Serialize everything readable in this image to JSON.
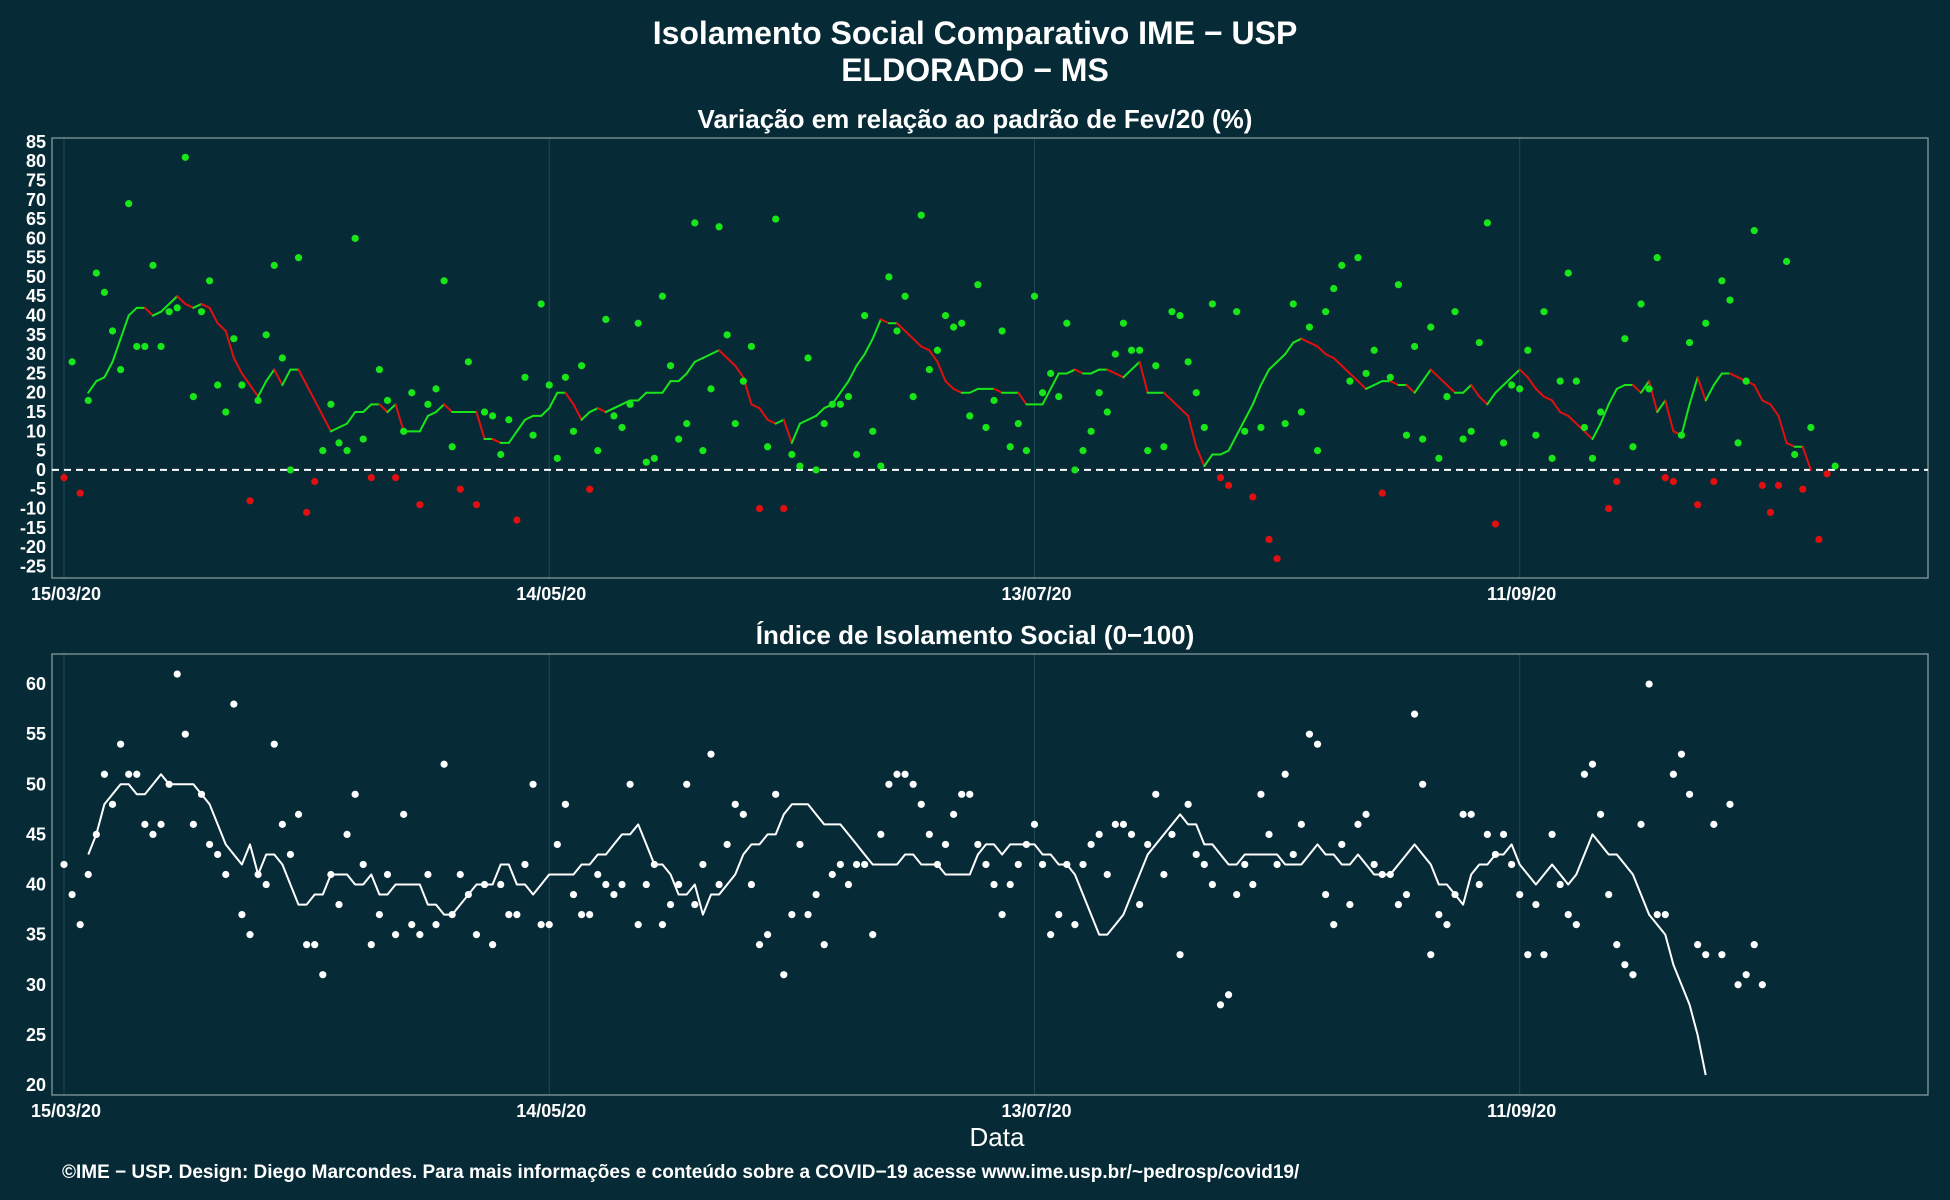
{
  "header": {
    "title": "Isolamento Social Comparativo IME − USP",
    "subtitle": "ELDORADO − MS"
  },
  "colors": {
    "background": "#062a36",
    "axis": "#8fa3a8",
    "grid": "#1e4a56",
    "positive": "#19e619",
    "negative": "#e01010",
    "index": "#ffffff"
  },
  "footer": {
    "xlabel": "Data",
    "credit": "©IME − USP. Design: Diego Marcondes. Para mais informações e conteúdo sobre a COVID−19 acesse www.ime.usp.br/~pedrosp/covid19/"
  },
  "chart_data": [
    {
      "type": "scatter",
      "title": "Variação em relação ao padrão de Fev/20 (%)",
      "xlim": [
        "15/03/20",
        "30/10/20"
      ],
      "ylim": [
        -28,
        86
      ],
      "yticks": [
        -25,
        -20,
        -15,
        -10,
        -5,
        0,
        5,
        10,
        15,
        20,
        25,
        30,
        35,
        40,
        45,
        50,
        55,
        60,
        65,
        70,
        75,
        80,
        85
      ],
      "xtick_labels": [
        "15/03/20",
        "14/05/20",
        "13/07/20",
        "11/09/20"
      ],
      "reference_line": 0,
      "positive_color": "#19e619",
      "negative_color": "#e01010",
      "points_start": "15/03/20",
      "points": [
        -2,
        28,
        -6,
        18,
        51,
        46,
        36,
        26,
        69,
        32,
        32,
        53,
        32,
        41,
        42,
        81,
        19,
        41,
        49,
        22,
        15,
        34,
        22,
        -8,
        18,
        35,
        53,
        29,
        0,
        55,
        -11,
        -3,
        5,
        17,
        7,
        5,
        60,
        8,
        -2,
        26,
        18,
        -2,
        10,
        20,
        -9,
        17,
        21,
        49,
        6,
        -5,
        28,
        -9,
        15,
        14,
        4,
        13,
        -13,
        24,
        9,
        43,
        22,
        3,
        24,
        10,
        27,
        -5,
        5,
        39,
        14,
        11,
        17,
        38,
        2,
        3,
        45,
        27,
        8,
        12,
        64,
        5,
        21,
        63,
        35,
        12,
        23,
        32,
        -10,
        6,
        65,
        -10,
        4,
        1,
        29,
        0,
        12,
        17,
        17,
        19,
        4,
        40,
        10,
        1,
        50,
        36,
        45,
        19,
        66,
        26,
        31,
        40,
        37,
        38,
        14,
        48,
        11,
        18,
        36,
        6,
        12,
        5,
        45,
        20,
        25,
        19,
        38,
        0,
        5,
        10,
        20,
        15,
        30,
        38,
        31,
        31,
        5,
        27,
        6,
        41,
        40,
        28,
        20,
        11,
        43,
        -2,
        -4,
        41,
        10,
        -7,
        11,
        -18,
        -23,
        12,
        43,
        15,
        37,
        5,
        41,
        47,
        53,
        23,
        55,
        25,
        31,
        -6,
        24,
        48,
        9,
        32,
        8,
        37,
        3,
        19,
        41,
        8,
        10,
        33,
        64,
        -14,
        7,
        22,
        21,
        31,
        9,
        41,
        3,
        23,
        51,
        23,
        11,
        3,
        15,
        -10,
        -3,
        34,
        6,
        43,
        21,
        55,
        -2,
        -3,
        9,
        33,
        -9,
        38,
        -3,
        49,
        44,
        7,
        23,
        62,
        -4,
        -11,
        -4,
        54,
        4,
        -5,
        11,
        -18,
        -1,
        1
      ],
      "ma_start": "18/03/20",
      "moving_average": [
        20,
        23,
        24,
        28,
        34,
        40,
        42,
        42,
        40,
        41,
        43,
        45,
        43,
        42,
        43,
        42,
        38,
        36,
        29,
        25,
        22,
        19,
        23,
        26,
        22,
        26,
        26,
        22,
        18,
        14,
        10,
        11,
        12,
        15,
        15,
        17,
        17,
        15,
        17,
        10,
        10,
        10,
        14,
        15,
        17,
        15,
        15,
        15,
        15,
        8,
        8,
        7,
        7,
        10,
        13,
        14,
        14,
        16,
        20,
        20,
        17,
        13,
        15,
        16,
        15,
        16,
        17,
        18,
        18,
        20,
        20,
        20,
        23,
        23,
        25,
        28,
        29,
        30,
        31,
        29,
        27,
        24,
        17,
        16,
        13,
        12,
        13,
        7,
        12,
        13,
        14,
        16,
        17,
        20,
        23,
        27,
        30,
        34,
        39,
        38,
        38,
        36,
        34,
        32,
        31,
        28,
        23,
        21,
        20,
        20,
        21,
        21,
        21,
        20,
        20,
        20,
        17,
        17,
        17,
        21,
        25,
        25,
        26,
        25,
        25,
        26,
        26,
        25,
        24,
        26,
        28,
        20,
        20,
        20,
        18,
        16,
        14,
        6,
        1,
        4,
        4,
        5,
        9,
        13,
        17,
        22,
        26,
        28,
        30,
        33,
        34,
        33,
        32,
        30,
        29,
        27,
        25,
        23,
        21,
        22,
        23,
        23,
        22,
        22,
        20,
        23,
        26,
        24,
        22,
        20,
        20,
        22,
        19,
        17,
        20,
        22,
        24,
        26,
        24,
        21,
        19,
        18,
        15,
        14,
        12,
        10,
        8,
        12,
        17,
        21,
        22,
        22,
        20,
        23,
        15,
        18,
        10,
        9,
        17,
        24,
        18,
        22,
        25,
        25,
        24,
        23,
        22,
        18,
        17,
        14,
        7,
        6,
        6,
        0
      ]
    },
    {
      "type": "scatter",
      "title": "Índice de Isolamento Social (0−100)",
      "xlabel": "Data",
      "xlim": [
        "15/03/20",
        "30/10/20"
      ],
      "ylim": [
        19,
        63
      ],
      "yticks": [
        20,
        25,
        30,
        35,
        40,
        45,
        50,
        55,
        60
      ],
      "xtick_labels": [
        "15/03/20",
        "14/05/20",
        "13/07/20",
        "11/09/20"
      ],
      "color": "#ffffff",
      "points_start": "15/03/20",
      "points": [
        42,
        39,
        36,
        41,
        45,
        51,
        48,
        54,
        51,
        51,
        46,
        45,
        46,
        50,
        61,
        55,
        46,
        49,
        44,
        43,
        41,
        58,
        37,
        35,
        41,
        40,
        54,
        46,
        43,
        47,
        34,
        34,
        31,
        41,
        38,
        45,
        49,
        42,
        34,
        37,
        41,
        35,
        47,
        36,
        35,
        41,
        36,
        52,
        37,
        41,
        39,
        35,
        40,
        34,
        40,
        37,
        37,
        42,
        50,
        36,
        36,
        44,
        48,
        39,
        37,
        37,
        41,
        40,
        39,
        40,
        50,
        36,
        40,
        42,
        36,
        38,
        40,
        50,
        38,
        42,
        53,
        40,
        44,
        48,
        47,
        40,
        34,
        35,
        49,
        31,
        37,
        44,
        37,
        39,
        34,
        41,
        42,
        40,
        42,
        42,
        35,
        45,
        50,
        51,
        51,
        50,
        48,
        45,
        42,
        44,
        47,
        49,
        49,
        44,
        42,
        40,
        37,
        40,
        42,
        44,
        46,
        42,
        35,
        37,
        42,
        36,
        42,
        44,
        45,
        41,
        46,
        46,
        45,
        38,
        44,
        49,
        41,
        45,
        33,
        48,
        43,
        42,
        40,
        28,
        29,
        39,
        42,
        40,
        49,
        45,
        42,
        51,
        43,
        46,
        55,
        54,
        39,
        36,
        44,
        38,
        46,
        47,
        42,
        41,
        41,
        38,
        39,
        57,
        50,
        33,
        37,
        36,
        39,
        47,
        47,
        40,
        45,
        43,
        45,
        42,
        39,
        33,
        38,
        33,
        45,
        40,
        37,
        36,
        51,
        52,
        47,
        39,
        34,
        32,
        31,
        46,
        60,
        37,
        37,
        51,
        53,
        49,
        34,
        33,
        46,
        33,
        48,
        30,
        31,
        34,
        30
      ],
      "ma_start": "18/03/20",
      "moving_average": [
        43,
        45,
        48,
        49,
        50,
        50,
        49,
        49,
        50,
        51,
        50,
        50,
        50,
        50,
        49,
        48,
        46,
        44,
        43,
        42,
        44,
        41,
        43,
        43,
        42,
        40,
        38,
        38,
        39,
        39,
        41,
        41,
        41,
        40,
        40,
        41,
        39,
        39,
        40,
        40,
        40,
        40,
        38,
        38,
        37,
        37,
        38,
        39,
        40,
        40,
        40,
        42,
        42,
        40,
        40,
        39,
        40,
        41,
        41,
        41,
        41,
        42,
        42,
        43,
        43,
        44,
        45,
        45,
        46,
        44,
        42,
        42,
        41,
        39,
        39,
        40,
        37,
        39,
        39,
        40,
        41,
        43,
        44,
        44,
        45,
        45,
        47,
        48,
        48,
        48,
        47,
        46,
        46,
        46,
        45,
        44,
        43,
        42,
        42,
        42,
        42,
        43,
        43,
        42,
        42,
        42,
        41,
        41,
        41,
        41,
        43,
        44,
        44,
        43,
        44,
        44,
        44,
        44,
        43,
        43,
        42,
        42,
        41,
        39,
        37,
        35,
        35,
        36,
        37,
        39,
        41,
        43,
        44,
        45,
        46,
        47,
        46,
        46,
        44,
        44,
        43,
        42,
        42,
        43,
        43,
        43,
        43,
        43,
        42,
        42,
        42,
        43,
        44,
        43,
        43,
        42,
        42,
        43,
        42,
        41,
        41,
        41,
        42,
        43,
        44,
        43,
        42,
        40,
        40,
        39,
        38,
        41,
        42,
        42,
        43,
        43,
        44,
        42,
        41,
        40,
        41,
        42,
        41,
        40,
        41,
        43,
        45,
        44,
        43,
        43,
        42,
        41,
        39,
        37,
        36,
        35,
        32,
        30,
        28,
        25,
        21
      ]
    }
  ]
}
